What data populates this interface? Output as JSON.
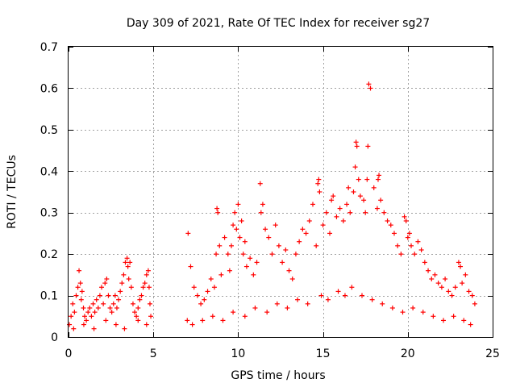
{
  "chart_data": {
    "type": "scatter",
    "title": "Day 309 of 2021, Rate Of TEC Index for receiver sg27",
    "xlabel": "GPS time / hours",
    "ylabel": "ROTI / TECUs",
    "xlim": [
      0,
      25
    ],
    "ylim": [
      0,
      0.7
    ],
    "x_ticks": [
      0,
      5,
      10,
      15,
      20,
      25
    ],
    "x_tick_labels": [
      "0",
      "5",
      "10",
      "15",
      "20",
      "25"
    ],
    "y_ticks": [
      0,
      0.1,
      0.2,
      0.3,
      0.4,
      0.5,
      0.6,
      0.7
    ],
    "y_tick_labels": [
      "0",
      "0.1",
      "0.2",
      "0.3",
      "0.4",
      "0.5",
      "0.6",
      "0.7"
    ],
    "grid": true,
    "marker": "plus",
    "marker_color": "#ff0000",
    "series": [
      {
        "name": "ROTI",
        "x": [
          0.05,
          0.15,
          0.25,
          0.35,
          0.45,
          0.55,
          0.62,
          0.7,
          0.75,
          0.8,
          0.88,
          0.95,
          1.05,
          1.15,
          1.25,
          1.35,
          1.45,
          1.55,
          1.65,
          1.75,
          1.85,
          1.95,
          2.05,
          2.15,
          2.25,
          2.35,
          2.45,
          2.55,
          2.65,
          2.75,
          2.85,
          2.95,
          3.05,
          3.15,
          3.25,
          3.35,
          3.45,
          3.5,
          3.55,
          3.62,
          3.7,
          3.8,
          3.9,
          4.0,
          4.1,
          4.2,
          4.3,
          4.4,
          4.5,
          4.6,
          4.7,
          4.75,
          4.8,
          4.85,
          7.0,
          7.05,
          7.2,
          7.4,
          7.6,
          7.8,
          8.0,
          8.2,
          8.4,
          8.6,
          8.7,
          8.75,
          8.8,
          8.9,
          9.0,
          9.2,
          9.4,
          9.5,
          9.6,
          9.7,
          9.8,
          9.9,
          10.0,
          10.1,
          10.2,
          10.3,
          10.4,
          10.5,
          10.7,
          10.9,
          11.1,
          11.3,
          11.35,
          11.45,
          11.6,
          11.8,
          12.0,
          12.2,
          12.4,
          12.6,
          12.8,
          13.0,
          13.2,
          13.4,
          13.6,
          13.8,
          14.0,
          14.2,
          14.4,
          14.6,
          14.7,
          14.75,
          14.8,
          15.0,
          15.2,
          15.4,
          15.5,
          15.6,
          15.8,
          16.0,
          16.2,
          16.4,
          16.5,
          16.6,
          16.8,
          16.9,
          16.95,
          17.0,
          17.1,
          17.2,
          17.4,
          17.5,
          17.6,
          17.65,
          17.7,
          17.8,
          18.0,
          18.2,
          18.25,
          18.3,
          18.4,
          18.6,
          18.8,
          19.0,
          19.2,
          19.4,
          19.6,
          19.8,
          19.9,
          20.0,
          20.1,
          20.2,
          20.4,
          20.6,
          20.8,
          21.0,
          21.2,
          21.4,
          21.6,
          21.8,
          22.0,
          22.2,
          22.4,
          22.6,
          22.8,
          23.0,
          23.1,
          23.2,
          23.4,
          23.6,
          23.8,
          23.95,
          0.3,
          0.9,
          1.5,
          2.2,
          2.8,
          3.3,
          4.1,
          4.6,
          7.3,
          7.9,
          8.5,
          9.1,
          9.7,
          10.4,
          11.0,
          11.7,
          12.3,
          12.9,
          13.5,
          14.1,
          14.9,
          15.3,
          15.9,
          16.3,
          16.7,
          17.3,
          17.9,
          18.5,
          19.1,
          19.7,
          20.3,
          20.9,
          21.5,
          22.1,
          22.7,
          23.3,
          23.7
        ],
        "y": [
          0.03,
          0.05,
          0.08,
          0.06,
          0.1,
          0.12,
          0.16,
          0.13,
          0.09,
          0.11,
          0.07,
          0.05,
          0.04,
          0.06,
          0.07,
          0.05,
          0.08,
          0.06,
          0.09,
          0.07,
          0.1,
          0.12,
          0.08,
          0.13,
          0.14,
          0.1,
          0.07,
          0.06,
          0.08,
          0.1,
          0.07,
          0.09,
          0.11,
          0.13,
          0.15,
          0.18,
          0.19,
          0.17,
          0.14,
          0.18,
          0.12,
          0.08,
          0.06,
          0.05,
          0.07,
          0.09,
          0.1,
          0.12,
          0.13,
          0.15,
          0.16,
          0.12,
          0.08,
          0.05,
          0.04,
          0.25,
          0.17,
          0.12,
          0.1,
          0.08,
          0.09,
          0.11,
          0.14,
          0.12,
          0.2,
          0.31,
          0.3,
          0.22,
          0.15,
          0.24,
          0.2,
          0.16,
          0.22,
          0.27,
          0.3,
          0.26,
          0.32,
          0.24,
          0.28,
          0.2,
          0.23,
          0.17,
          0.19,
          0.15,
          0.18,
          0.37,
          0.3,
          0.32,
          0.26,
          0.24,
          0.2,
          0.27,
          0.22,
          0.18,
          0.21,
          0.16,
          0.14,
          0.2,
          0.23,
          0.26,
          0.25,
          0.28,
          0.32,
          0.22,
          0.37,
          0.38,
          0.35,
          0.27,
          0.3,
          0.25,
          0.33,
          0.34,
          0.29,
          0.31,
          0.28,
          0.32,
          0.36,
          0.3,
          0.35,
          0.41,
          0.47,
          0.46,
          0.38,
          0.34,
          0.33,
          0.3,
          0.38,
          0.46,
          0.61,
          0.6,
          0.36,
          0.31,
          0.38,
          0.39,
          0.33,
          0.3,
          0.28,
          0.27,
          0.25,
          0.22,
          0.2,
          0.29,
          0.28,
          0.24,
          0.25,
          0.22,
          0.2,
          0.23,
          0.21,
          0.18,
          0.16,
          0.14,
          0.15,
          0.13,
          0.12,
          0.14,
          0.11,
          0.1,
          0.12,
          0.18,
          0.17,
          0.13,
          0.15,
          0.11,
          0.1,
          0.08,
          0.02,
          0.03,
          0.02,
          0.04,
          0.03,
          0.02,
          0.04,
          0.03,
          0.03,
          0.04,
          0.05,
          0.04,
          0.06,
          0.05,
          0.07,
          0.06,
          0.08,
          0.07,
          0.09,
          0.08,
          0.1,
          0.09,
          0.11,
          0.1,
          0.12,
          0.1,
          0.09,
          0.08,
          0.07,
          0.06,
          0.07,
          0.06,
          0.05,
          0.04,
          0.05,
          0.04,
          0.03
        ]
      }
    ]
  }
}
